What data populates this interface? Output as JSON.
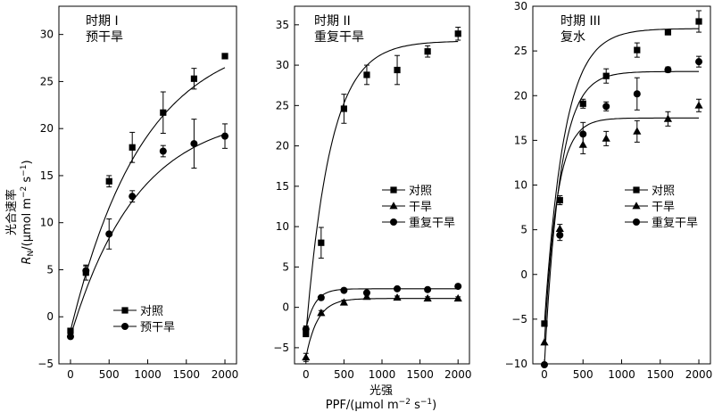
{
  "y_axis_label": {
    "line1": "光合速率",
    "symbol": "R",
    "symbol_sub": "N",
    "unit_start": "/(μmol m",
    "unit_exp1": "−2",
    "unit_mid": " s",
    "unit_exp2": "−1",
    "unit_end": ")"
  },
  "x_axis_label": {
    "line1": "光强",
    "unit_start": "PPF/(μmol m",
    "unit_exp1": "−2",
    "unit_mid": " s",
    "unit_exp2": "−1",
    "unit_end": ")"
  },
  "chart_data": [
    {
      "type": "scatter",
      "title": "时期 I",
      "subtitle": "预干旱",
      "xlim": [
        -150,
        2150
      ],
      "ylim": [
        -5,
        33
      ],
      "xticks": [
        0,
        500,
        1000,
        1500,
        2000
      ],
      "yticks": [
        -5,
        0,
        5,
        10,
        15,
        20,
        25,
        30
      ],
      "legend_position": "bottom-center",
      "series": [
        {
          "name": "对照",
          "marker": "square",
          "x": [
            0,
            200,
            500,
            800,
            1200,
            1600,
            2000
          ],
          "y": [
            -1.5,
            4.7,
            14.4,
            18.0,
            21.7,
            25.3,
            27.7
          ],
          "err": [
            0,
            0.8,
            0.6,
            1.6,
            2.2,
            1.1,
            0
          ],
          "fit": {
            "amax": 31.8,
            "k": 0.00106,
            "y0": -1.5
          }
        },
        {
          "name": "预干旱",
          "marker": "circle",
          "x": [
            0,
            200,
            500,
            800,
            1200,
            1600,
            2000
          ],
          "y": [
            -2.1,
            4.9,
            8.8,
            12.8,
            17.6,
            18.4,
            19.2
          ],
          "err": [
            0,
            0.5,
            1.6,
            0.6,
            0.6,
            2.6,
            1.3
          ],
          "fit": {
            "amax": 23.9,
            "k": 0.00115,
            "y0": -2.1
          }
        }
      ]
    },
    {
      "type": "scatter",
      "title": "时期 II",
      "subtitle": "重复干旱",
      "xlim": [
        -150,
        2150
      ],
      "ylim": [
        -7,
        37.3
      ],
      "xticks": [
        0,
        500,
        1000,
        1500,
        2000
      ],
      "yticks": [
        -5,
        0,
        5,
        10,
        15,
        20,
        25,
        30,
        35
      ],
      "legend_position": "center-right",
      "series": [
        {
          "name": "对照",
          "marker": "square",
          "x": [
            0,
            200,
            500,
            800,
            1200,
            1600,
            2000
          ],
          "y": [
            -3.3,
            8.0,
            24.6,
            28.8,
            29.4,
            31.7,
            33.9
          ],
          "err": [
            0,
            1.9,
            1.8,
            1.2,
            1.8,
            0.7,
            0.8
          ],
          "fit": {
            "amax": 36.3,
            "k": 0.0031,
            "y0": -3.3
          }
        },
        {
          "name": "干旱",
          "marker": "triangle",
          "x": [
            0,
            200,
            500,
            800,
            1200,
            1600,
            2000
          ],
          "y": [
            -6.2,
            -0.7,
            0.6,
            1.3,
            1.2,
            1.1,
            1.1
          ],
          "err": [
            0.5,
            0.3,
            0.3,
            0.2,
            0.2,
            0.2,
            0.2
          ],
          "fit": {
            "amax": 7.3,
            "k": 0.0065,
            "y0": -6.2
          }
        },
        {
          "name": "重复干旱",
          "marker": "circle",
          "x": [
            0,
            200,
            500,
            800,
            1200,
            1600,
            2000
          ],
          "y": [
            -2.7,
            1.2,
            2.1,
            1.8,
            2.3,
            2.2,
            2.6
          ],
          "err": [
            0.4,
            0.2,
            0.2,
            0.2,
            0.2,
            0.2,
            0.2
          ],
          "fit": {
            "amax": 5.0,
            "k": 0.0085,
            "y0": -2.7
          }
        }
      ]
    },
    {
      "type": "scatter",
      "title": "时期 III",
      "subtitle": "复水",
      "xlim": [
        -150,
        2150
      ],
      "ylim": [
        -10,
        30
      ],
      "xticks": [
        0,
        500,
        1000,
        1500,
        2000
      ],
      "yticks": [
        -10,
        -5,
        0,
        5,
        10,
        15,
        20,
        25,
        30
      ],
      "legend_position": "center-right",
      "series": [
        {
          "name": "对照",
          "marker": "square",
          "x": [
            0,
            200,
            500,
            800,
            1200,
            1600,
            2000
          ],
          "y": [
            -5.5,
            8.3,
            19.1,
            22.2,
            25.1,
            27.1,
            28.3
          ],
          "err": [
            0,
            0.5,
            0.5,
            0.8,
            0.8,
            0.3,
            1.2
          ],
          "fit": {
            "amax": 33.0,
            "k": 0.0039,
            "y0": -5.5
          }
        },
        {
          "name": "干旱",
          "marker": "triangle",
          "x": [
            0,
            200,
            500,
            800,
            1200,
            1600,
            2000
          ],
          "y": [
            -7.6,
            5.1,
            14.5,
            15.2,
            16.0,
            17.4,
            18.9
          ],
          "err": [
            0,
            0.5,
            1.0,
            0.8,
            1.2,
            0.8,
            0.7
          ],
          "fit": {
            "amax": 25.1,
            "k": 0.0062,
            "y0": -7.6
          }
        },
        {
          "name": "重复干旱",
          "marker": "circle",
          "x": [
            0,
            200,
            500,
            800,
            1200,
            1600,
            2000
          ],
          "y": [
            -10.1,
            4.4,
            15.7,
            18.8,
            20.2,
            22.9,
            23.8
          ],
          "err": [
            0,
            0.6,
            1.3,
            0.5,
            1.8,
            0.3,
            0.6
          ],
          "fit": {
            "amax": 32.8,
            "k": 0.005,
            "y0": -10.1
          }
        }
      ]
    }
  ]
}
